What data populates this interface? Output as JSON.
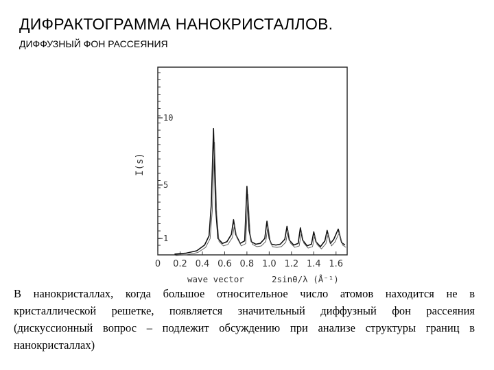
{
  "slide": {
    "title": "ДИФРАКТОГРАММА НАНОКРИСТАЛЛОВ.",
    "subtitle": "ДИФФУЗНЫЙ ФОН РАССЕЯНИЯ",
    "body_text": "В нанокристаллах, когда большое относительное число атомов находится не в кристаллической решетке, появляется значительный диффузный фон рассеяния (дискуссионный вопрос – подлежит обсуждению при анализе структуры границ в нанокристаллах)"
  },
  "chart_data": {
    "type": "line",
    "ylabel": "I(s)",
    "xlabel_left": "wave vector",
    "xlabel_right": "2sinθ/λ (Å⁻¹)",
    "x_ticks": [
      "0",
      "0.2",
      "0.4",
      "0.6",
      "0.8",
      "1.0",
      "1.2",
      "1.4",
      "1.6"
    ],
    "y_ticks": [
      "1",
      "5",
      "10"
    ],
    "xlim": [
      0,
      1.7
    ],
    "ylim": [
      0,
      12
    ],
    "series": [
      {
        "x": [
          0.15,
          0.25,
          0.35,
          0.42,
          0.46,
          0.48,
          0.5,
          0.52,
          0.54,
          0.58,
          0.62,
          0.66,
          0.68,
          0.7,
          0.74,
          0.78,
          0.8,
          0.82,
          0.84,
          0.88,
          0.92,
          0.96,
          0.98,
          1.0,
          1.02,
          1.06,
          1.1,
          1.14,
          1.16,
          1.18,
          1.22,
          1.26,
          1.28,
          1.3,
          1.34,
          1.38,
          1.4,
          1.42,
          1.46,
          1.5,
          1.52,
          1.55,
          1.58,
          1.62,
          1.65,
          1.68
        ],
        "y": [
          0.05,
          0.1,
          0.25,
          0.6,
          1.2,
          3.5,
          9.2,
          3.2,
          1.0,
          0.7,
          0.8,
          1.3,
          2.4,
          1.3,
          0.7,
          0.85,
          4.9,
          1.6,
          0.8,
          0.65,
          0.7,
          1.0,
          2.3,
          1.0,
          0.65,
          0.6,
          0.65,
          0.95,
          1.9,
          0.9,
          0.6,
          0.7,
          1.8,
          0.9,
          0.55,
          0.65,
          1.5,
          0.8,
          0.5,
          0.85,
          1.6,
          0.7,
          0.95,
          1.7,
          0.75,
          0.6
        ]
      }
    ],
    "grid": false
  }
}
